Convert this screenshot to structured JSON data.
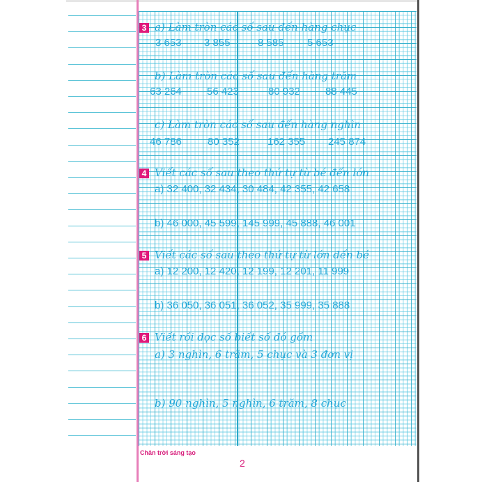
{
  "exercises": [
    {
      "number": "3",
      "parts": [
        {
          "prompt": "a) Làm tròn các số sau đến hàng chục",
          "values": [
            "3 653",
            "3 855",
            "8 585",
            "5 653"
          ]
        },
        {
          "prompt": "b) Làm tròn các số sau đến hàng trăm",
          "values": [
            "63 264",
            "56 423",
            "80 932",
            "88 445"
          ]
        },
        {
          "prompt": "c) Làm tròn các số sau đến hàng nghìn",
          "values": [
            "46 786",
            "80 352",
            "162 355",
            "245 874"
          ]
        }
      ]
    },
    {
      "number": "4",
      "title": "Viết các số sau theo thứ tự từ bé đến lớn",
      "parts": [
        "a) 32 400, 32 434, 30 484, 42 355, 42 658",
        "b) 46 000, 45 599, 145 999, 45 888, 46 001"
      ]
    },
    {
      "number": "5",
      "title": "Viết các số sau theo thứ tự từ lớn đến bé",
      "parts": [
        "a) 12 200, 12 420, 12 199, 12 201, 11 999",
        "b) 36 050, 36 051, 36 052, 35 999, 35 888"
      ]
    },
    {
      "number": "6",
      "title": "Viết rồi đọc số biết số đó gồm",
      "parts": [
        "a) 3 nghìn, 6 trăm, 5 chục và 3 đơn vị",
        "b) 90 nghìn, 5 nghìn, 6 trăm, 8 chục"
      ]
    }
  ],
  "footer": {
    "brand": "Chân trời sáng tạo",
    "page": "2"
  },
  "colors": {
    "ink": "#27a9d9",
    "accent": "#e0187a",
    "grid": "#2aa8c8"
  }
}
